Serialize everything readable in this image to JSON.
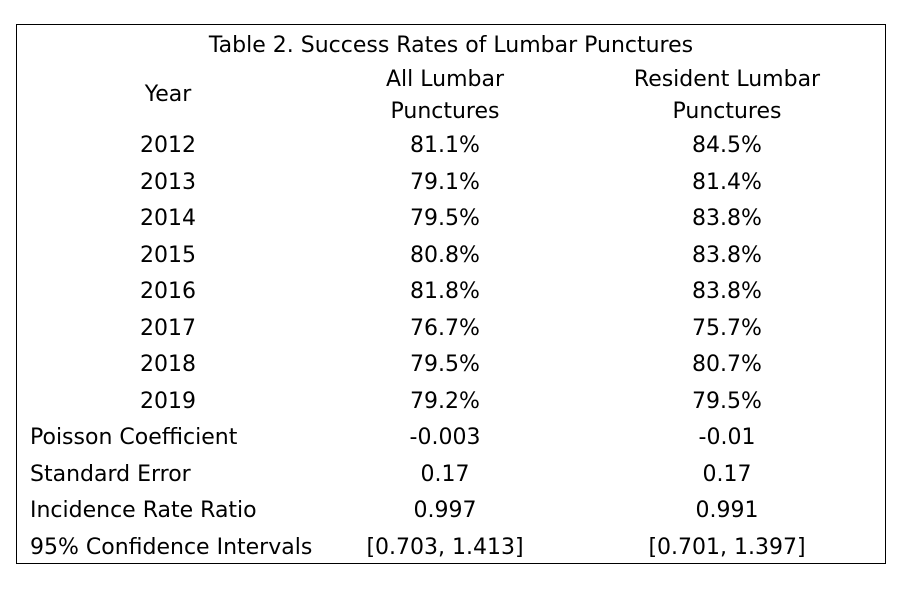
{
  "table": {
    "title": "Table 2. Success Rates of Lumbar Punctures",
    "headers": {
      "year": "Year",
      "all_line1": "All Lumbar",
      "all_line2": "Punctures",
      "res_line1": "Resident Lumbar",
      "res_line2": "Punctures"
    },
    "years": [
      {
        "year": "2012",
        "all": "81.1%",
        "res": "84.5%"
      },
      {
        "year": "2013",
        "all": "79.1%",
        "res": "81.4%"
      },
      {
        "year": "2014",
        "all": "79.5%",
        "res": "83.8%"
      },
      {
        "year": "2015",
        "all": "80.8%",
        "res": "83.8%"
      },
      {
        "year": "2016",
        "all": "81.8%",
        "res": "83.8%"
      },
      {
        "year": "2017",
        "all": "76.7%",
        "res": "75.7%"
      },
      {
        "year": "2018",
        "all": "79.5%",
        "res": "80.7%"
      },
      {
        "year": "2019",
        "all": "79.2%",
        "res": "79.5%"
      }
    ],
    "stats": [
      {
        "label": "Poisson Coefficient",
        "all": "-0.003",
        "res": "-0.01"
      },
      {
        "label": "Standard Error",
        "all": "0.17",
        "res": "0.17"
      },
      {
        "label": "Incidence Rate Ratio",
        "all": "0.997",
        "res": "0.991"
      },
      {
        "label": "95% Confidence Intervals",
        "all": "[0.703, 1.413]",
        "res": "[0.701, 1.397]"
      }
    ]
  }
}
